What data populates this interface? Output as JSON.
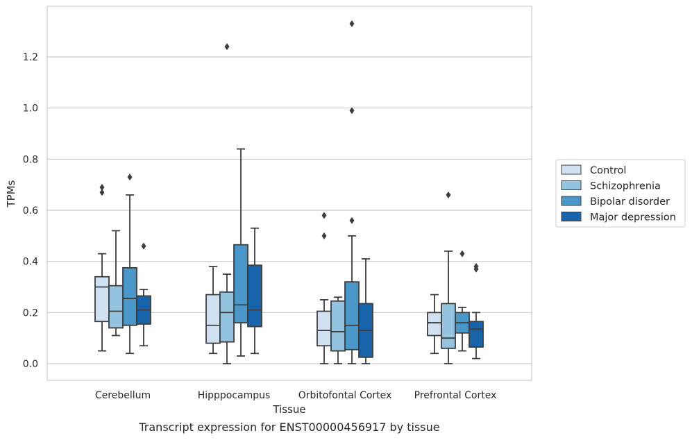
{
  "caption": "Transcript expression for ENST00000456917 by tissue",
  "chart_data": {
    "type": "box",
    "xlabel": "Tissue",
    "ylabel": "TPMs",
    "ylim": [
      -0.065,
      1.4
    ],
    "yticks": [
      "0.0",
      "0.2",
      "0.4",
      "0.6",
      "0.8",
      "1.0",
      "1.2"
    ],
    "grid": "horizontal",
    "legend_position": "right",
    "categories": [
      "Cerebellum",
      "Hipppocampus",
      "Orbitofontal Cortex",
      "Prefrontal Cortex"
    ],
    "series": [
      {
        "name": "Control",
        "color": "#d0e1f2",
        "boxes": [
          {
            "min": 0.05,
            "q1": 0.165,
            "median": 0.3,
            "q3": 0.34,
            "max": 0.43,
            "outliers": [
              0.67,
              0.69
            ]
          },
          {
            "min": 0.04,
            "q1": 0.08,
            "median": 0.15,
            "q3": 0.27,
            "max": 0.38,
            "outliers": []
          },
          {
            "min": 0.0,
            "q1": 0.07,
            "median": 0.13,
            "q3": 0.205,
            "max": 0.25,
            "outliers": [
              0.5,
              0.58
            ]
          },
          {
            "min": 0.04,
            "q1": 0.11,
            "median": 0.16,
            "q3": 0.2,
            "max": 0.27,
            "outliers": []
          }
        ]
      },
      {
        "name": "Schizophrenia",
        "color": "#94c4df",
        "boxes": [
          {
            "min": 0.11,
            "q1": 0.14,
            "median": 0.205,
            "q3": 0.305,
            "max": 0.52,
            "outliers": []
          },
          {
            "min": 0.0,
            "q1": 0.085,
            "median": 0.2,
            "q3": 0.28,
            "max": 0.35,
            "outliers": [
              1.24
            ]
          },
          {
            "min": 0.0,
            "q1": 0.05,
            "median": 0.125,
            "q3": 0.245,
            "max": 0.26,
            "outliers": []
          },
          {
            "min": 0.0,
            "q1": 0.06,
            "median": 0.1,
            "q3": 0.235,
            "max": 0.44,
            "outliers": [
              0.66
            ]
          }
        ]
      },
      {
        "name": "Bipolar disorder",
        "color": "#4a98c9",
        "boxes": [
          {
            "min": 0.04,
            "q1": 0.15,
            "median": 0.255,
            "q3": 0.375,
            "max": 0.66,
            "outliers": [
              0.73
            ]
          },
          {
            "min": 0.03,
            "q1": 0.16,
            "median": 0.23,
            "q3": 0.465,
            "max": 0.84,
            "outliers": []
          },
          {
            "min": 0.0,
            "q1": 0.055,
            "median": 0.15,
            "q3": 0.32,
            "max": 0.5,
            "outliers": [
              0.56,
              0.99,
              1.33
            ]
          },
          {
            "min": 0.05,
            "q1": 0.12,
            "median": 0.16,
            "q3": 0.2,
            "max": 0.22,
            "outliers": [
              0.43
            ]
          }
        ]
      },
      {
        "name": "Major depression",
        "color": "#1764ab",
        "boxes": [
          {
            "min": 0.07,
            "q1": 0.155,
            "median": 0.21,
            "q3": 0.265,
            "max": 0.29,
            "outliers": [
              0.46
            ]
          },
          {
            "min": 0.04,
            "q1": 0.145,
            "median": 0.21,
            "q3": 0.385,
            "max": 0.53,
            "outliers": []
          },
          {
            "min": 0.0,
            "q1": 0.025,
            "median": 0.13,
            "q3": 0.235,
            "max": 0.41,
            "outliers": []
          },
          {
            "min": 0.02,
            "q1": 0.065,
            "median": 0.135,
            "q3": 0.165,
            "max": 0.2,
            "outliers": [
              0.37,
              0.38
            ]
          }
        ]
      }
    ]
  }
}
